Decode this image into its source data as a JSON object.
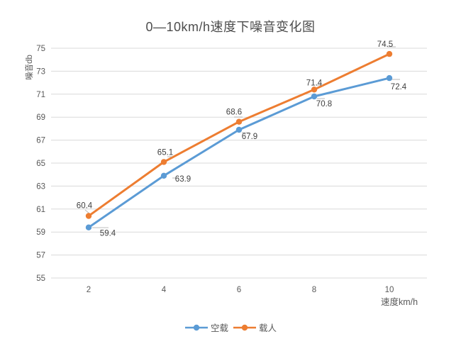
{
  "title": "0—10km/h速度下噪音变化图",
  "chart_data": {
    "type": "line",
    "x": [
      2,
      4,
      6,
      8,
      10
    ],
    "xlabel": "速度km/h",
    "ylabel": "噪音db",
    "ylim": [
      55,
      75
    ],
    "ytick_step": 2,
    "yticks": [
      55,
      57,
      59,
      61,
      63,
      65,
      67,
      69,
      71,
      73,
      75
    ],
    "grid": true,
    "legend_position": "bottom",
    "series": [
      {
        "name": "空载",
        "color": "#5B9BD5",
        "values": [
          59.4,
          63.9,
          67.9,
          70.8,
          72.4
        ]
      },
      {
        "name": "载人",
        "color": "#ED7D31",
        "values": [
          60.4,
          65.1,
          68.6,
          71.4,
          74.5
        ]
      }
    ]
  },
  "colors": {
    "background": "#FFFFFF",
    "grid": "#D9D9D9",
    "axis_text": "#595959",
    "data_label": "#404040",
    "leader_line": "#A6A6A6",
    "title_text": "#4D4D4D"
  }
}
